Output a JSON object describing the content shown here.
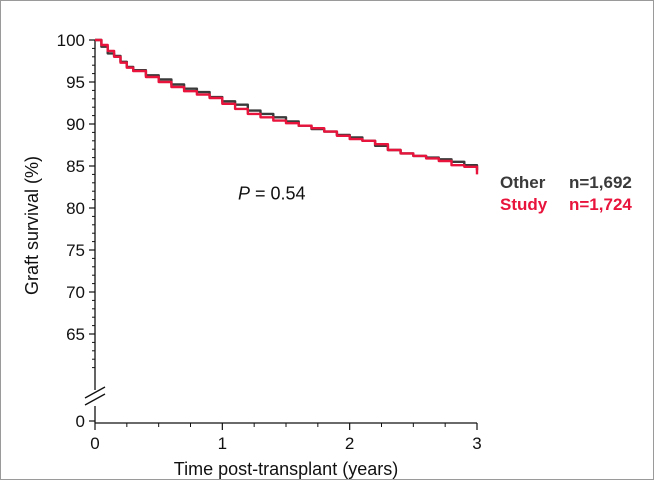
{
  "chart_data": {
    "type": "line",
    "xlabel": "Time post-transplant (years)",
    "ylabel": "Graft survival (%)",
    "xlim": [
      0,
      3
    ],
    "ylim": [
      60,
      100
    ],
    "y_axis_break": true,
    "x_ticks": [
      0,
      1,
      2,
      3
    ],
    "y_ticks": [
      65,
      70,
      75,
      80,
      85,
      90,
      95,
      100
    ],
    "y_zero_label": "0",
    "grid": false,
    "legend_position": "right",
    "annotation": {
      "italic": "P",
      "text": " = 0.54",
      "x": 1.5,
      "y": 81
    },
    "series": [
      {
        "name": "Other",
        "n_label": "n=1,692",
        "color": "#3a3a3a",
        "x": [
          0,
          0.05,
          0.1,
          0.15,
          0.2,
          0.25,
          0.3,
          0.4,
          0.5,
          0.6,
          0.7,
          0.8,
          0.9,
          1.0,
          1.1,
          1.2,
          1.3,
          1.4,
          1.5,
          1.6,
          1.7,
          1.8,
          1.9,
          2.0,
          2.1,
          2.2,
          2.3,
          2.4,
          2.5,
          2.6,
          2.7,
          2.8,
          2.9,
          3.0
        ],
        "y": [
          100,
          99.2,
          98.4,
          98.1,
          97.4,
          96.8,
          96.4,
          95.8,
          95.3,
          94.7,
          94.2,
          93.8,
          93.2,
          92.7,
          92.3,
          91.6,
          91.2,
          90.8,
          90.3,
          89.8,
          89.4,
          89.1,
          88.7,
          88.4,
          88.0,
          87.4,
          86.9,
          86.5,
          86.2,
          86.0,
          85.8,
          85.5,
          85.1,
          84.5
        ]
      },
      {
        "name": "Study",
        "n_label": "n=1,724",
        "color": "#e8143c",
        "x": [
          0,
          0.05,
          0.1,
          0.15,
          0.2,
          0.25,
          0.3,
          0.4,
          0.5,
          0.6,
          0.7,
          0.8,
          0.9,
          1.0,
          1.1,
          1.2,
          1.3,
          1.4,
          1.5,
          1.6,
          1.7,
          1.8,
          1.9,
          2.0,
          2.1,
          2.2,
          2.3,
          2.4,
          2.5,
          2.6,
          2.7,
          2.8,
          2.9,
          3.0
        ],
        "y": [
          100,
          99.4,
          98.7,
          98.0,
          97.3,
          96.7,
          96.3,
          95.6,
          95.0,
          94.4,
          93.9,
          93.5,
          93.1,
          92.4,
          91.8,
          91.2,
          90.8,
          90.4,
          90.1,
          89.8,
          89.5,
          89.1,
          88.6,
          88.2,
          88.0,
          87.6,
          86.9,
          86.5,
          86.2,
          85.9,
          85.6,
          85.1,
          84.9,
          84.0
        ]
      }
    ]
  }
}
